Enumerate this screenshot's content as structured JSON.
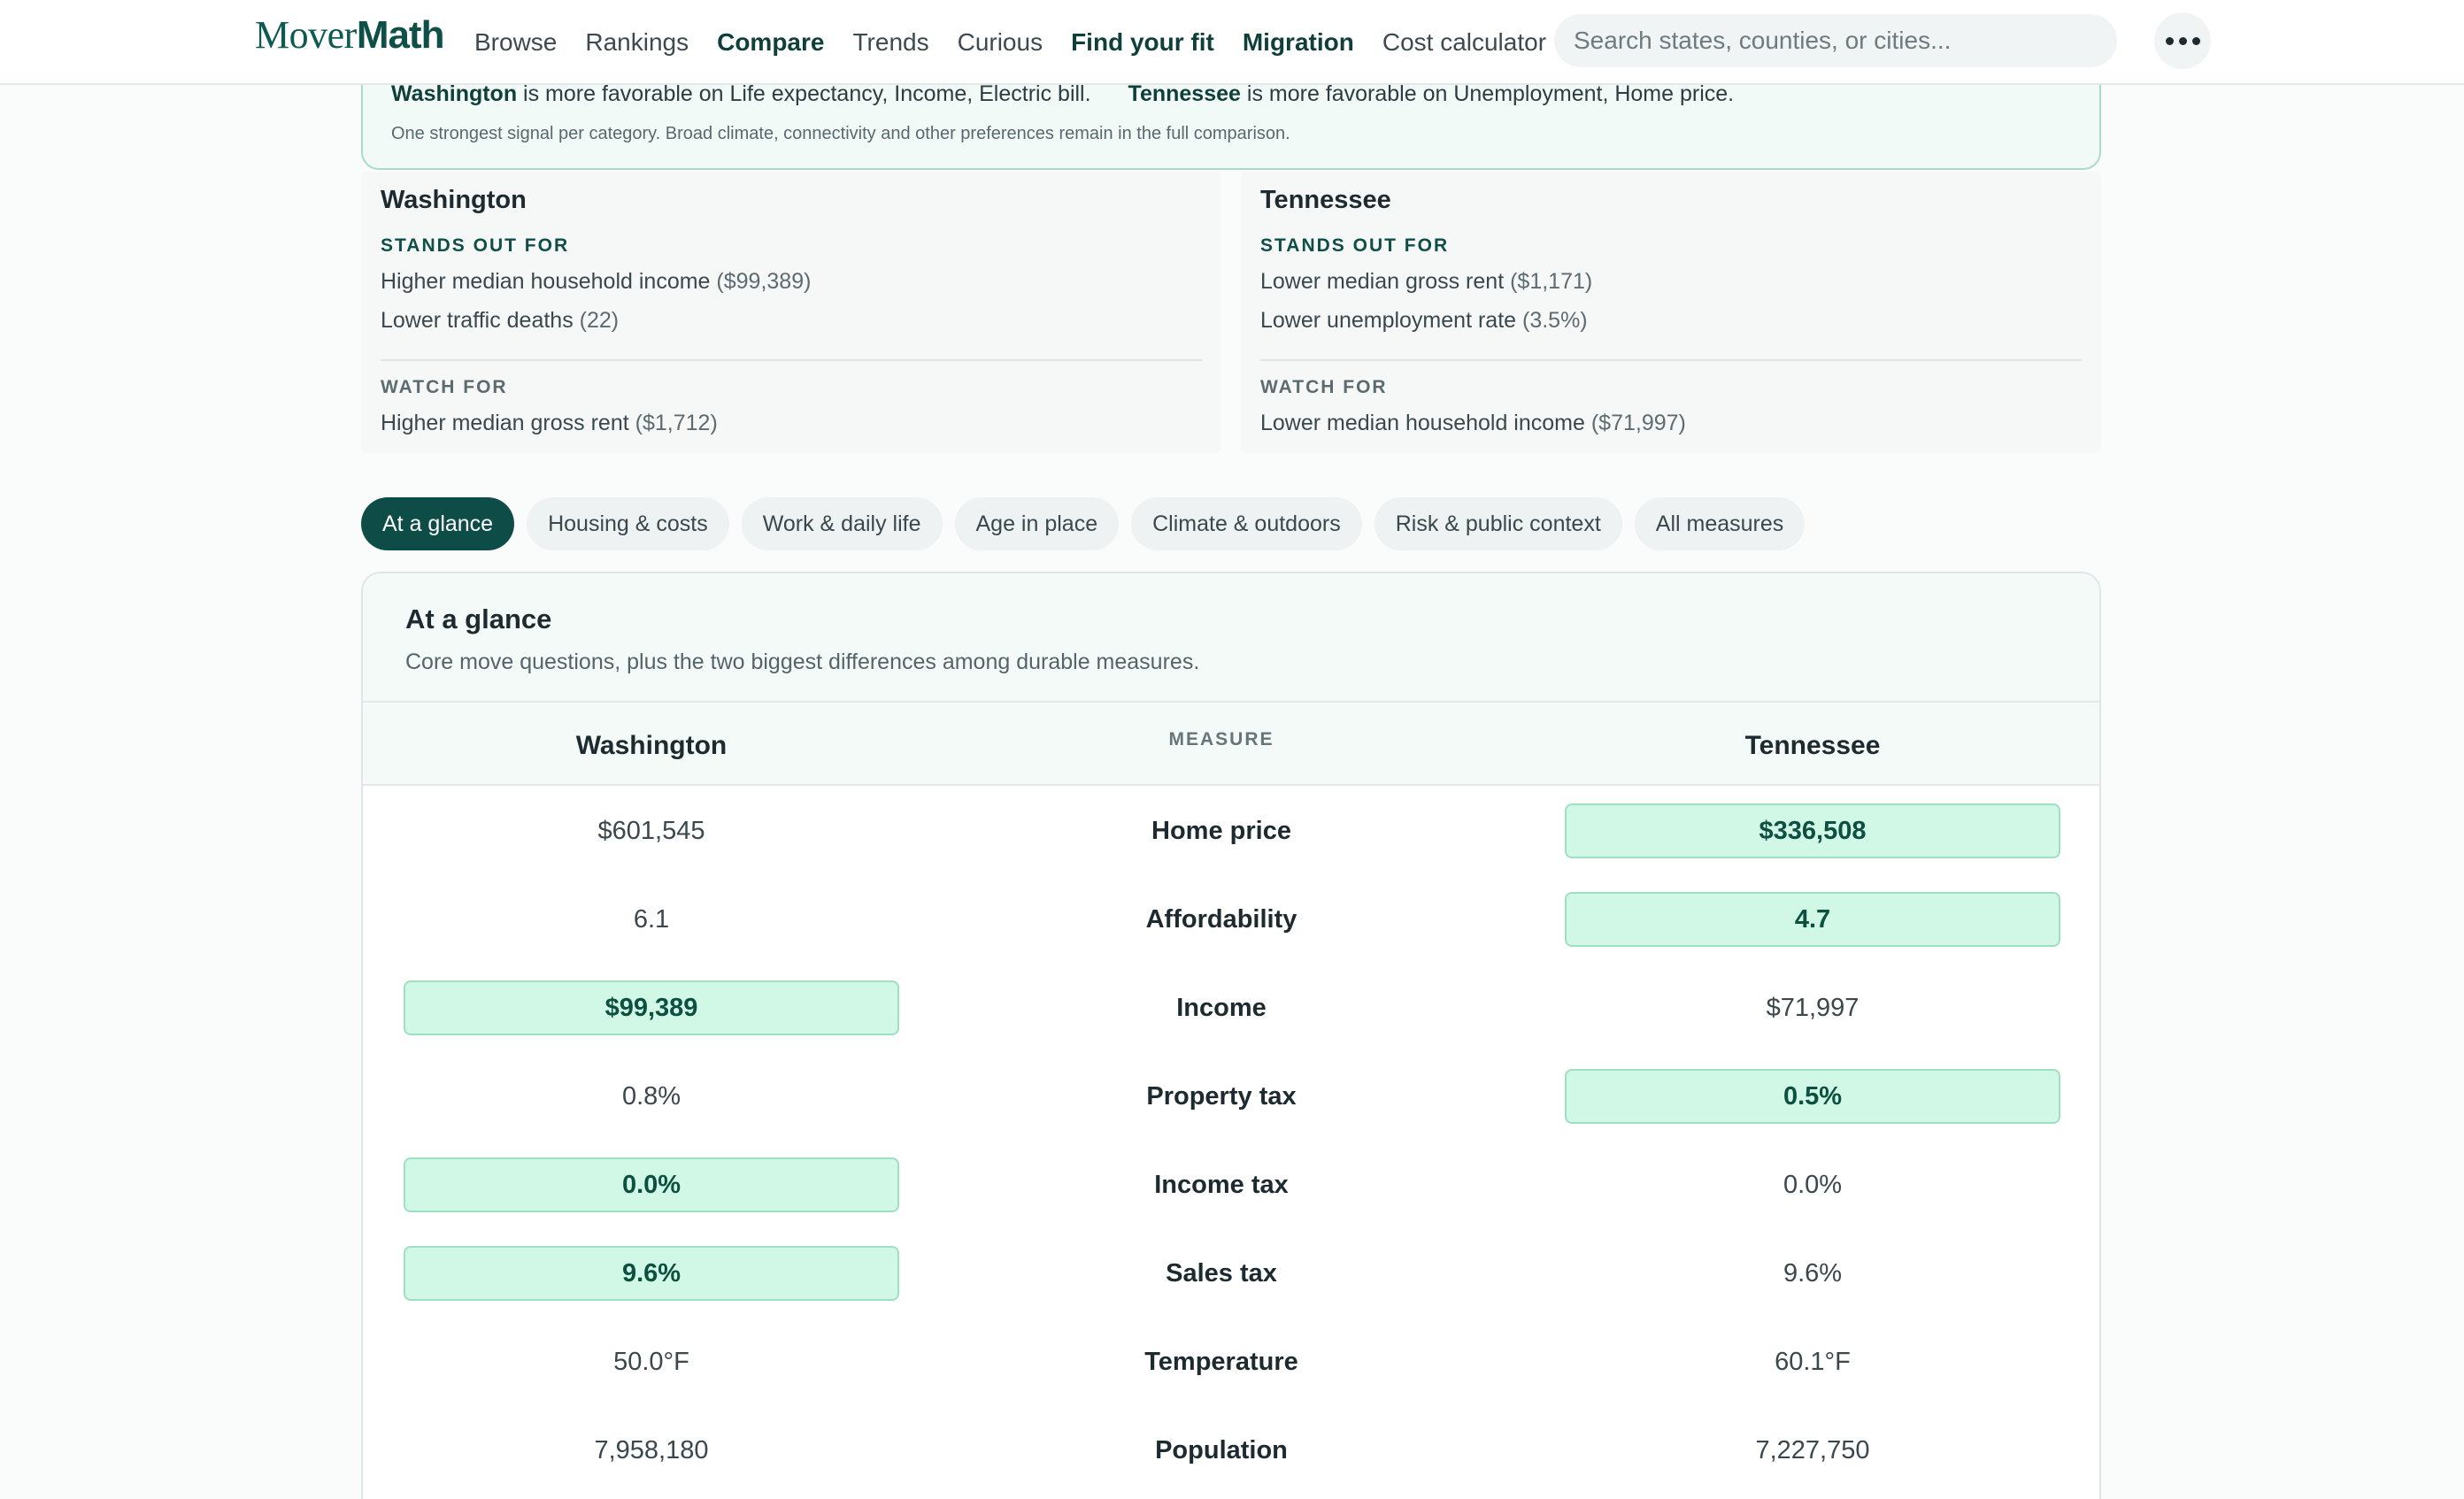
{
  "nav": {
    "logo_light": "Mover",
    "logo_bold": "Math",
    "links": [
      {
        "label": "Browse",
        "bold": false
      },
      {
        "label": "Rankings",
        "bold": false
      },
      {
        "label": "Compare",
        "bold": true
      },
      {
        "label": "Trends",
        "bold": false
      },
      {
        "label": "Curious",
        "bold": false
      },
      {
        "label": "Find your fit",
        "bold": true
      },
      {
        "label": "Migration",
        "bold": true
      },
      {
        "label": "Cost calculator",
        "bold": false
      }
    ],
    "search_placeholder": "Search states, counties, or cities..."
  },
  "banner": {
    "left_state": "Washington",
    "left_text": " is more favorable on Life expectancy, Income, Electric bill.",
    "right_state": "Tennessee",
    "right_text": " is more favorable on Unemployment, Home price.",
    "note": "One strongest signal per category. Broad climate, connectivity and other preferences remain in the full comparison."
  },
  "cards": {
    "left": {
      "title": "Washington",
      "stands_out_label": "STANDS OUT FOR",
      "stands_out": [
        {
          "text": "Higher median household income",
          "value": "($99,389)"
        },
        {
          "text": "Lower traffic deaths",
          "value": "(22)"
        }
      ],
      "watch_label": "WATCH FOR",
      "watch": [
        {
          "text": "Higher median gross rent",
          "value": "($1,712)"
        }
      ]
    },
    "right": {
      "title": "Tennessee",
      "stands_out_label": "STANDS OUT FOR",
      "stands_out": [
        {
          "text": "Lower median gross rent",
          "value": "($1,171)"
        },
        {
          "text": "Lower unemployment rate",
          "value": "(3.5%)"
        }
      ],
      "watch_label": "WATCH FOR",
      "watch": [
        {
          "text": "Lower median household income",
          "value": "($71,997)"
        }
      ]
    }
  },
  "tabs": [
    {
      "label": "At a glance",
      "active": true
    },
    {
      "label": "Housing & costs",
      "active": false
    },
    {
      "label": "Work & daily life",
      "active": false
    },
    {
      "label": "Age in place",
      "active": false
    },
    {
      "label": "Climate & outdoors",
      "active": false
    },
    {
      "label": "Risk & public context",
      "active": false
    },
    {
      "label": "All measures",
      "active": false
    }
  ],
  "panel": {
    "title": "At a glance",
    "subtitle": "Core move questions, plus the two biggest differences among durable measures.",
    "col_left": "Washington",
    "col_mid": "MEASURE",
    "col_right": "Tennessee",
    "rows": [
      {
        "measure": "Home price",
        "left": "$601,545",
        "right": "$336,508",
        "winner": "right"
      },
      {
        "measure": "Affordability",
        "left": "6.1",
        "right": "4.7",
        "winner": "right"
      },
      {
        "measure": "Income",
        "left": "$99,389",
        "right": "$71,997",
        "winner": "left"
      },
      {
        "measure": "Property tax",
        "left": "0.8%",
        "right": "0.5%",
        "winner": "right"
      },
      {
        "measure": "Income tax",
        "left": "0.0%",
        "right": "0.0%",
        "winner": "left"
      },
      {
        "measure": "Sales tax",
        "left": "9.6%",
        "right": "9.6%",
        "winner": "left"
      },
      {
        "measure": "Temperature",
        "left": "50.0°F",
        "right": "60.1°F",
        "winner": "none"
      },
      {
        "measure": "Population",
        "left": "7,958,180",
        "right": "7,227,750",
        "winner": "none"
      }
    ]
  }
}
